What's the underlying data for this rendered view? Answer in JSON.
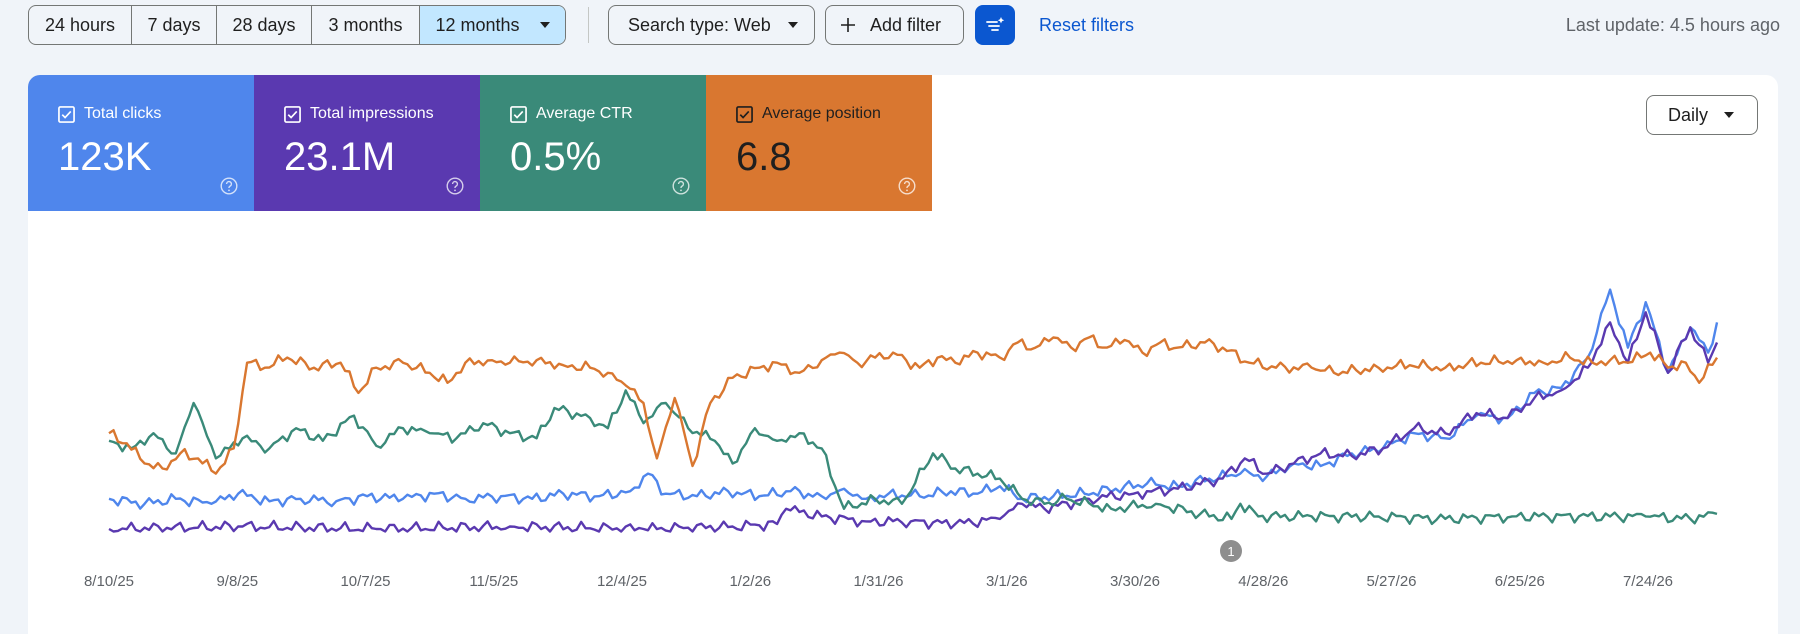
{
  "date_range": {
    "options": [
      {
        "label": "24 hours",
        "active": false
      },
      {
        "label": "7 days",
        "active": false
      },
      {
        "label": "28 days",
        "active": false
      },
      {
        "label": "3 months",
        "active": false
      },
      {
        "label": "12 months",
        "active": true
      }
    ]
  },
  "toolbar": {
    "search_type_label": "Search type: Web",
    "add_filter_label": "Add filter",
    "reset_label": "Reset filters",
    "last_update": "Last update: 4.5 hours ago"
  },
  "metrics": [
    {
      "label": "Total clicks",
      "value": "123K",
      "color": "#4f86ec",
      "checked": true
    },
    {
      "label": "Total impressions",
      "value": "23.1M",
      "color": "#5a39b0",
      "checked": true
    },
    {
      "label": "Average CTR",
      "value": "0.5%",
      "color": "#3a8a79",
      "checked": true
    },
    {
      "label": "Average position",
      "value": "6.8",
      "color": "#d97730",
      "checked": true
    }
  ],
  "granularity": "Daily",
  "chart_data": {
    "type": "line",
    "x_tick_labels": [
      "8/10/25",
      "9/8/25",
      "10/7/25",
      "11/5/25",
      "12/4/25",
      "1/2/26",
      "1/31/26",
      "3/1/26",
      "3/30/26",
      "4/28/26",
      "5/27/26",
      "6/25/26",
      "7/24/26"
    ],
    "grid": false,
    "annotation": {
      "label": "1",
      "x": "4/21/26"
    },
    "series": [
      {
        "name": "Total clicks",
        "color": "#4f86ec",
        "points": [
          [
            0,
            0.12
          ],
          [
            8,
            0.1
          ],
          [
            15,
            0.12
          ],
          [
            23,
            0.1
          ],
          [
            29,
            0.14
          ],
          [
            36,
            0.11
          ],
          [
            43,
            0.12
          ],
          [
            51,
            0.11
          ],
          [
            58,
            0.13
          ],
          [
            66,
            0.12
          ],
          [
            73,
            0.14
          ],
          [
            80,
            0.12
          ],
          [
            88,
            0.13
          ],
          [
            95,
            0.12
          ],
          [
            102,
            0.14
          ],
          [
            110,
            0.13
          ],
          [
            117,
            0.15
          ],
          [
            121,
            0.22
          ],
          [
            125,
            0.14
          ],
          [
            132,
            0.13
          ],
          [
            139,
            0.15
          ],
          [
            146,
            0.13
          ],
          [
            153,
            0.15
          ],
          [
            160,
            0.13
          ],
          [
            165,
            0.16
          ],
          [
            170,
            0.12
          ],
          [
            175,
            0.14
          ],
          [
            182,
            0.13
          ],
          [
            189,
            0.15
          ],
          [
            195,
            0.14
          ],
          [
            200,
            0.17
          ],
          [
            205,
            0.12
          ],
          [
            212,
            0.13
          ],
          [
            219,
            0.14
          ],
          [
            226,
            0.16
          ],
          [
            233,
            0.18
          ],
          [
            240,
            0.17
          ],
          [
            247,
            0.2
          ],
          [
            254,
            0.22
          ],
          [
            260,
            0.21
          ],
          [
            266,
            0.26
          ],
          [
            272,
            0.25
          ],
          [
            279,
            0.3
          ],
          [
            286,
            0.32
          ],
          [
            293,
            0.38
          ],
          [
            300,
            0.36
          ],
          [
            307,
            0.45
          ],
          [
            314,
            0.44
          ],
          [
            320,
            0.54
          ],
          [
            326,
            0.56
          ],
          [
            332,
            0.68
          ],
          [
            337,
            0.95
          ],
          [
            341,
            0.72
          ],
          [
            345,
            0.9
          ],
          [
            350,
            0.62
          ],
          [
            355,
            0.8
          ],
          [
            359,
            0.7
          ],
          [
            361,
            0.82
          ]
        ]
      },
      {
        "name": "Total impressions",
        "color": "#5a39b0",
        "points": [
          [
            0,
            0.0
          ],
          [
            30,
            0.01
          ],
          [
            60,
            0.0
          ],
          [
            90,
            0.01
          ],
          [
            120,
            0.0
          ],
          [
            140,
            0.01
          ],
          [
            150,
            0.02
          ],
          [
            152,
            0.08
          ],
          [
            160,
            0.05
          ],
          [
            170,
            0.03
          ],
          [
            180,
            0.03
          ],
          [
            190,
            0.02
          ],
          [
            200,
            0.04
          ],
          [
            205,
            0.1
          ],
          [
            210,
            0.08
          ],
          [
            220,
            0.12
          ],
          [
            230,
            0.14
          ],
          [
            240,
            0.16
          ],
          [
            250,
            0.2
          ],
          [
            255,
            0.28
          ],
          [
            260,
            0.22
          ],
          [
            266,
            0.26
          ],
          [
            272,
            0.3
          ],
          [
            279,
            0.29
          ],
          [
            286,
            0.32
          ],
          [
            293,
            0.4
          ],
          [
            300,
            0.38
          ],
          [
            307,
            0.46
          ],
          [
            314,
            0.44
          ],
          [
            320,
            0.52
          ],
          [
            326,
            0.55
          ],
          [
            332,
            0.64
          ],
          [
            337,
            0.82
          ],
          [
            341,
            0.66
          ],
          [
            345,
            0.86
          ],
          [
            350,
            0.62
          ],
          [
            355,
            0.8
          ],
          [
            359,
            0.66
          ],
          [
            361,
            0.74
          ]
        ]
      },
      {
        "name": "Average CTR",
        "color": "#3a8a79",
        "points": [
          [
            0,
            0.35
          ],
          [
            5,
            0.32
          ],
          [
            10,
            0.38
          ],
          [
            15,
            0.3
          ],
          [
            19,
            0.5
          ],
          [
            24,
            0.28
          ],
          [
            30,
            0.36
          ],
          [
            36,
            0.32
          ],
          [
            42,
            0.4
          ],
          [
            48,
            0.35
          ],
          [
            55,
            0.45
          ],
          [
            60,
            0.33
          ],
          [
            66,
            0.4
          ],
          [
            72,
            0.38
          ],
          [
            78,
            0.36
          ],
          [
            84,
            0.42
          ],
          [
            90,
            0.38
          ],
          [
            96,
            0.36
          ],
          [
            100,
            0.48
          ],
          [
            108,
            0.44
          ],
          [
            112,
            0.4
          ],
          [
            116,
            0.55
          ],
          [
            120,
            0.42
          ],
          [
            125,
            0.5
          ],
          [
            130,
            0.4
          ],
          [
            136,
            0.35
          ],
          [
            140,
            0.26
          ],
          [
            145,
            0.4
          ],
          [
            150,
            0.35
          ],
          [
            155,
            0.38
          ],
          [
            160,
            0.32
          ],
          [
            165,
            0.08
          ],
          [
            172,
            0.12
          ],
          [
            178,
            0.1
          ],
          [
            185,
            0.3
          ],
          [
            190,
            0.24
          ],
          [
            195,
            0.22
          ],
          [
            200,
            0.2
          ],
          [
            205,
            0.12
          ],
          [
            210,
            0.1
          ],
          [
            215,
            0.12
          ],
          [
            225,
            0.08
          ],
          [
            235,
            0.1
          ],
          [
            245,
            0.06
          ],
          [
            252,
            0.04
          ],
          [
            254,
            0.1
          ],
          [
            258,
            0.05
          ],
          [
            270,
            0.05
          ],
          [
            285,
            0.05
          ],
          [
            300,
            0.04
          ],
          [
            315,
            0.05
          ],
          [
            330,
            0.05
          ],
          [
            345,
            0.05
          ],
          [
            355,
            0.04
          ],
          [
            361,
            0.06
          ]
        ]
      },
      {
        "name": "Average position",
        "color": "#d97730",
        "points": [
          [
            0,
            0.38
          ],
          [
            4,
            0.34
          ],
          [
            8,
            0.26
          ],
          [
            12,
            0.24
          ],
          [
            16,
            0.3
          ],
          [
            20,
            0.28
          ],
          [
            24,
            0.22
          ],
          [
            28,
            0.32
          ],
          [
            31,
            0.66
          ],
          [
            35,
            0.64
          ],
          [
            40,
            0.68
          ],
          [
            46,
            0.64
          ],
          [
            52,
            0.66
          ],
          [
            56,
            0.54
          ],
          [
            60,
            0.64
          ],
          [
            66,
            0.66
          ],
          [
            72,
            0.62
          ],
          [
            76,
            0.58
          ],
          [
            80,
            0.66
          ],
          [
            86,
            0.67
          ],
          [
            90,
            0.66
          ],
          [
            96,
            0.67
          ],
          [
            102,
            0.65
          ],
          [
            108,
            0.64
          ],
          [
            112,
            0.62
          ],
          [
            116,
            0.57
          ],
          [
            120,
            0.5
          ],
          [
            123,
            0.28
          ],
          [
            127,
            0.52
          ],
          [
            131,
            0.25
          ],
          [
            135,
            0.5
          ],
          [
            140,
            0.6
          ],
          [
            146,
            0.64
          ],
          [
            150,
            0.66
          ],
          [
            155,
            0.62
          ],
          [
            160,
            0.67
          ],
          [
            164,
            0.7
          ],
          [
            168,
            0.66
          ],
          [
            172,
            0.68
          ],
          [
            176,
            0.7
          ],
          [
            182,
            0.64
          ],
          [
            186,
            0.68
          ],
          [
            190,
            0.66
          ],
          [
            195,
            0.7
          ],
          [
            200,
            0.68
          ],
          [
            204,
            0.74
          ],
          [
            208,
            0.72
          ],
          [
            212,
            0.76
          ],
          [
            216,
            0.72
          ],
          [
            220,
            0.76
          ],
          [
            224,
            0.72
          ],
          [
            228,
            0.75
          ],
          [
            232,
            0.7
          ],
          [
            236,
            0.74
          ],
          [
            240,
            0.72
          ],
          [
            246,
            0.74
          ],
          [
            250,
            0.72
          ],
          [
            256,
            0.66
          ],
          [
            262,
            0.64
          ],
          [
            270,
            0.64
          ],
          [
            275,
            0.62
          ],
          [
            280,
            0.63
          ],
          [
            285,
            0.64
          ],
          [
            292,
            0.65
          ],
          [
            300,
            0.64
          ],
          [
            308,
            0.66
          ],
          [
            316,
            0.67
          ],
          [
            322,
            0.66
          ],
          [
            328,
            0.68
          ],
          [
            333,
            0.66
          ],
          [
            337,
            0.67
          ],
          [
            341,
            0.66
          ],
          [
            346,
            0.7
          ],
          [
            350,
            0.64
          ],
          [
            354,
            0.66
          ],
          [
            357,
            0.58
          ],
          [
            361,
            0.68
          ]
        ]
      }
    ]
  }
}
